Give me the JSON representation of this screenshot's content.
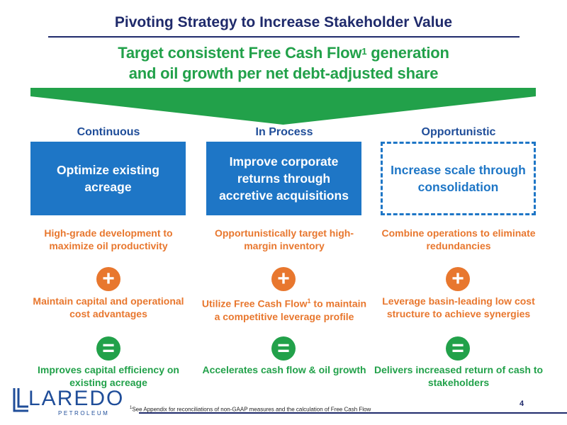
{
  "slide": {
    "title": "Pivoting Strategy to Increase Stakeholder Value",
    "headline": {
      "line1_before": "Target consistent Free Cash Flow",
      "line1_sup": "1",
      "line1_after": " generation",
      "line2": "and oil growth per net debt-adjusted share"
    },
    "page_number": "4"
  },
  "columns": [
    {
      "label": "Continuous",
      "box_text": "Optimize existing acreage",
      "box_style": "solid",
      "step1": "High-grade development to maximize oil productivity",
      "step2": "Maintain capital and operational cost advantages",
      "result": "Improves capital efficiency on existing acreage"
    },
    {
      "label": "In Process",
      "box_text": "Improve corporate returns through accretive acquisitions",
      "box_style": "solid",
      "step1": "Opportunistically target high-margin inventory",
      "step2_before": "Utilize Free Cash Flow",
      "step2_sup": "1",
      "step2_after": " to maintain a competitive leverage profile",
      "result": "Accelerates cash flow & oil growth"
    },
    {
      "label": "Opportunistic",
      "box_text": "Increase scale through consolidation",
      "box_style": "dashed",
      "step1": "Combine operations to eliminate redundancies",
      "step2": "Leverage basin-leading low cost structure to achieve synergies",
      "result": "Delivers increased return of cash to stakeholders"
    }
  ],
  "symbols": {
    "plus": "+",
    "equals": "="
  },
  "logo": {
    "word": "LAREDO",
    "sub": "PETROLEUM"
  },
  "footnote": {
    "sup": "1",
    "text": "See Appendix for reconciliations of non-GAAP measures and the calculation of Free Cash Flow"
  },
  "colors": {
    "navy": "#1f2a6b",
    "green": "#22a14a",
    "blue": "#1e76c6",
    "orange": "#e8772e"
  }
}
